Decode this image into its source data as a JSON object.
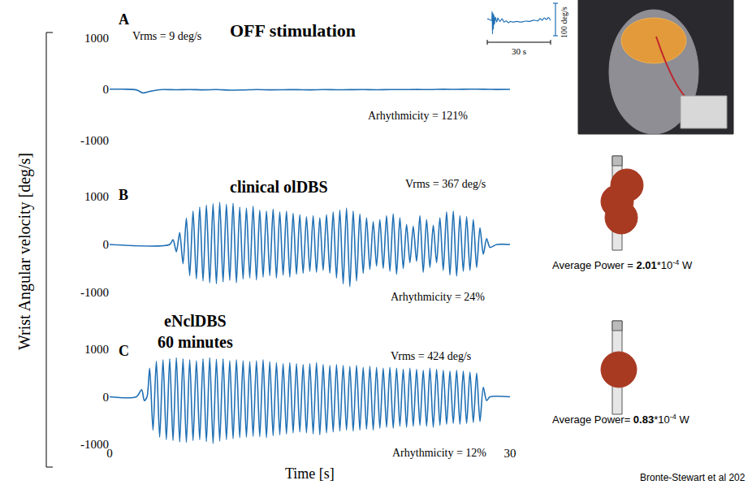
{
  "y_label": "Wrist Angular velocity [deg/s]",
  "chart_data": [
    {
      "type": "line",
      "panel": "A",
      "title": "OFF stimulation",
      "annotations": [
        "Vrms = 9 deg/s",
        "Arhythmicity = 121%"
      ],
      "x": [
        0,
        1,
        2,
        2.5,
        3,
        3.5,
        4,
        5,
        6,
        7,
        8,
        9,
        10,
        11,
        12,
        13,
        14,
        15,
        16,
        17,
        18,
        19,
        20,
        21,
        22,
        23,
        24,
        25,
        26,
        27,
        28,
        29,
        30
      ],
      "values": [
        5,
        3,
        -10,
        -70,
        -40,
        -15,
        -5,
        -8,
        -3,
        -10,
        -5,
        -15,
        -12,
        -5,
        -10,
        -8,
        -6,
        -10,
        -5,
        -8,
        -6,
        -4,
        -8,
        -3,
        -5,
        -2,
        -4,
        2,
        0,
        3,
        2,
        -2,
        0
      ],
      "color": "#1f6fb4",
      "line_style": "solid",
      "xlim": [
        0,
        30
      ],
      "xticks": [
        0,
        30
      ],
      "ylim": [
        -1000,
        1000
      ],
      "yticks": [
        -1000,
        0,
        1000
      ],
      "tick_labels": "y",
      "grid": false
    },
    {
      "type": "line",
      "panel": "B",
      "title": "clinical olDBS",
      "annotations": [
        "Vrms = 367 deg/s",
        "Arhythmicity = 24%"
      ],
      "x": [
        0,
        4.5,
        4.75,
        5,
        5.25,
        5.5,
        5.75,
        6,
        6.25,
        6.5,
        6.75,
        7,
        7.25,
        7.5,
        7.75,
        8,
        8.25,
        8.5,
        8.75,
        9,
        9.25,
        9.5,
        9.75,
        10,
        10.25,
        10.5,
        10.75,
        11,
        11.25,
        11.5,
        11.75,
        12,
        12.25,
        12.5,
        12.75,
        13,
        13.25,
        13.5,
        13.75,
        14,
        14.25,
        14.5,
        14.75,
        15,
        15.25,
        15.5,
        15.75,
        16,
        16.25,
        16.5,
        16.75,
        17,
        17.25,
        17.5,
        17.75,
        18,
        18.25,
        18.5,
        18.75,
        19,
        19.25,
        19.5,
        19.75,
        20,
        20.25,
        20.5,
        20.75,
        21,
        21.25,
        21.5,
        21.75,
        22,
        22.25,
        22.5,
        22.75,
        23,
        23.25,
        23.5,
        23.75,
        24,
        24.25,
        24.5,
        24.75,
        25,
        25.25,
        25.5,
        25.75,
        26,
        26.25,
        26.5,
        26.75,
        27,
        27.25,
        27.5,
        27.75,
        28,
        28.25,
        28.5,
        29,
        30
      ],
      "values": [
        0,
        0,
        100,
        -150,
        250,
        -400,
        550,
        -650,
        700,
        -720,
        780,
        -760,
        820,
        -800,
        850,
        -820,
        880,
        -780,
        840,
        -750,
        860,
        -800,
        780,
        -720,
        760,
        -700,
        800,
        -740,
        720,
        -680,
        700,
        -650,
        740,
        -700,
        680,
        -640,
        700,
        -680,
        650,
        -620,
        620,
        -600,
        580,
        -560,
        600,
        -580,
        560,
        -540,
        620,
        -600,
        680,
        -700,
        720,
        -820,
        760,
        -880,
        700,
        -760,
        640,
        -600,
        560,
        -520,
        480,
        -450,
        520,
        -500,
        600,
        -560,
        640,
        -620,
        560,
        -500,
        420,
        -380,
        380,
        -350,
        600,
        -580,
        520,
        -480,
        400,
        -380,
        560,
        -540,
        680,
        -640,
        700,
        -660,
        600,
        -560,
        580,
        -540,
        520,
        -480,
        350,
        -200,
        120,
        -60,
        0,
        0
      ],
      "color": "#1f6fb4",
      "line_style": "solid",
      "xlim": [
        0,
        30
      ],
      "xticks": [
        0,
        30
      ],
      "ylim": [
        -1000,
        1000
      ],
      "yticks": [
        -1000,
        0,
        1000
      ],
      "tick_labels": "y",
      "grid": false
    },
    {
      "type": "line",
      "panel": "C",
      "title": [
        "eNclDBS",
        "60 minutes"
      ],
      "annotations": [
        "Vrms = 424 deg/s",
        "Arhythmicity = 12%"
      ],
      "xlabel": "Time [s]",
      "x": [
        0,
        2,
        2.4,
        2.6,
        2.8,
        3,
        3.25,
        3.5,
        3.75,
        4,
        4.25,
        4.5,
        4.75,
        5,
        5.25,
        5.5,
        5.75,
        6,
        6.25,
        6.5,
        6.75,
        7,
        7.25,
        7.5,
        7.75,
        8,
        8.25,
        8.5,
        8.75,
        9,
        9.25,
        9.5,
        9.75,
        10,
        10.25,
        10.5,
        10.75,
        11,
        11.25,
        11.5,
        11.75,
        12,
        12.25,
        12.5,
        12.75,
        13,
        13.25,
        13.5,
        13.75,
        14,
        14.25,
        14.5,
        14.75,
        15,
        15.25,
        15.5,
        15.75,
        16,
        16.25,
        16.5,
        16.75,
        17,
        17.25,
        17.5,
        17.75,
        18,
        18.25,
        18.5,
        18.75,
        19,
        19.25,
        19.5,
        19.75,
        20,
        20.25,
        20.5,
        20.75,
        21,
        21.25,
        21.5,
        21.75,
        22,
        22.25,
        22.5,
        22.75,
        23,
        23.25,
        23.5,
        23.75,
        24,
        24.25,
        24.5,
        24.75,
        25,
        25.25,
        25.5,
        25.75,
        26,
        26.25,
        26.5,
        26.75,
        27,
        27.25,
        27.5,
        27.75,
        28,
        28.25,
        28.5,
        30
      ],
      "values": [
        0,
        0,
        150,
        -80,
        0,
        600,
        -700,
        750,
        -850,
        780,
        -900,
        800,
        -920,
        820,
        -950,
        800,
        -960,
        780,
        -920,
        760,
        -900,
        800,
        -940,
        820,
        -980,
        790,
        -930,
        800,
        -900,
        760,
        -880,
        780,
        -860,
        760,
        -850,
        740,
        -830,
        760,
        -840,
        780,
        -860,
        740,
        -820,
        720,
        -800,
        700,
        -780,
        720,
        -760,
        700,
        -740,
        680,
        -760,
        700,
        -780,
        720,
        -800,
        680,
        -760,
        660,
        -740,
        680,
        -720,
        660,
        -700,
        640,
        -720,
        660,
        -700,
        620,
        -680,
        640,
        -700,
        620,
        -660,
        600,
        -640,
        620,
        -660,
        600,
        -620,
        580,
        -640,
        600,
        -620,
        580,
        -600,
        560,
        -620,
        600,
        -640,
        580,
        -600,
        560,
        -580,
        540,
        -560,
        560,
        -580,
        540,
        -560,
        520,
        -540,
        500,
        -520,
        200,
        -80,
        0,
        0
      ],
      "color": "#1f6fb4",
      "line_style": "solid",
      "xlim": [
        0,
        30
      ],
      "xticks": [
        0,
        30
      ],
      "ylim": [
        -1000,
        1000
      ],
      "yticks": [
        -1000,
        0,
        1000
      ],
      "grid": false
    },
    {
      "type": "line",
      "x": [
        0,
        1,
        2,
        2.3,
        2.5,
        2.7,
        2.9,
        3.1,
        3.4,
        3.8,
        4.5,
        5,
        6,
        7,
        8,
        9,
        10,
        11,
        12,
        14,
        16,
        18,
        20,
        22,
        24,
        25,
        26,
        27,
        28,
        29,
        30
      ],
      "values": [
        2,
        0,
        -3,
        25,
        -45,
        20,
        -30,
        15,
        -15,
        8,
        -8,
        5,
        -6,
        2,
        -8,
        -4,
        -10,
        -6,
        -8,
        -6,
        -8,
        -5,
        -6,
        -2,
        -4,
        3,
        -2,
        5,
        0,
        6,
        -3
      ],
      "color": "#1f6fb4",
      "line_style": "solid",
      "xlim": [
        0,
        30
      ],
      "ylim": [
        -50,
        35
      ],
      "tick_labels": false,
      "grid": false,
      "scale_bars": [
        {
          "axis": "y",
          "value": 100,
          "label": "100 deg/s"
        },
        {
          "axis": "x",
          "value": 30,
          "label": "30 s"
        }
      ]
    }
  ],
  "power_labels": [
    {
      "text": "Average Power = ",
      "value": 2.01,
      "unit": "*10",
      "exponent": -4,
      "suffix": " W"
    },
    {
      "text": "Average Power= ",
      "value": 0.83,
      "unit": "*10",
      "exponent": -4,
      "suffix": " W"
    }
  ],
  "citation": "Bronte-Stewart et al 202"
}
